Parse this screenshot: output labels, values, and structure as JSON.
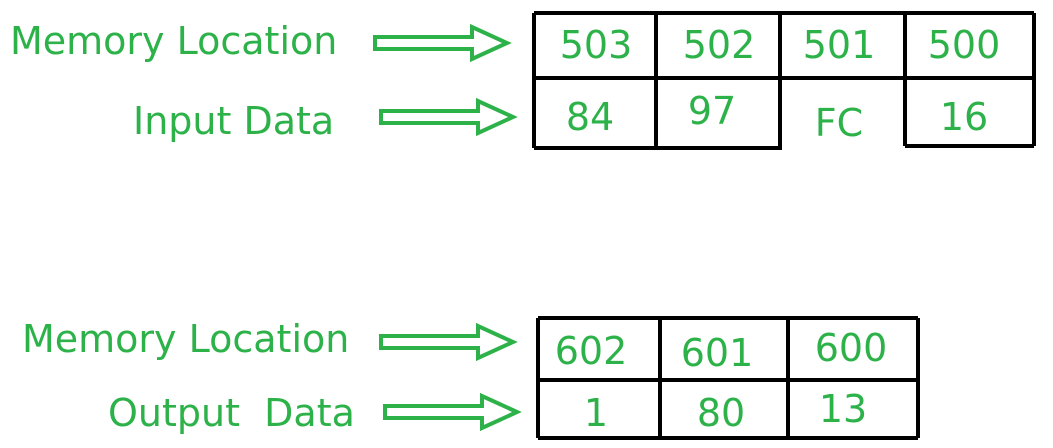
{
  "input_section": {
    "location_label": "Memory Location",
    "data_label": "Input Data",
    "addresses": [
      "503",
      "502",
      "501",
      "500"
    ],
    "values": [
      "84",
      "97",
      "FC",
      "16"
    ]
  },
  "output_section": {
    "location_label": "Memory Location",
    "data_label": "Output  Data",
    "addresses": [
      "602",
      "601",
      "600"
    ],
    "values": [
      "1",
      "80",
      "13"
    ]
  },
  "colors": {
    "text": "#2db24a",
    "arrow": "#2db24a",
    "border": "#000000"
  },
  "icons": {
    "arrow": "right-arrow-icon"
  }
}
